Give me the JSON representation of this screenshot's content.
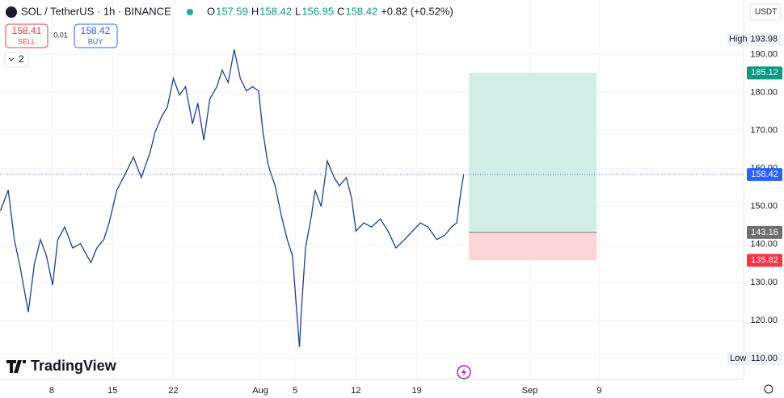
{
  "header": {
    "symbol": "SOL / TetherUS · 1h · BINANCE",
    "ohlc": [
      {
        "key": "O",
        "value": "157.59"
      },
      {
        "key": "H",
        "value": "158.42"
      },
      {
        "key": "L",
        "value": "156.95"
      },
      {
        "key": "C",
        "value": "158.42"
      }
    ],
    "change": "+0.82 (+0.52%)"
  },
  "trade": {
    "sell_price": "158.41",
    "sell_label": "SELL",
    "spread": "0.01",
    "buy_price": "158.42",
    "buy_label": "BUY"
  },
  "indicators_count": "2",
  "currency": "USDT",
  "brand": "TradingView",
  "chart_data": {
    "type": "line",
    "color": "#1e3f8f",
    "grid": true,
    "x": [
      2.1,
      3.0,
      3.7,
      4.4,
      5.3,
      6.0,
      6.7,
      7.4,
      8.1,
      8.7,
      9.5,
      10.4,
      11.3,
      12.5,
      13.2,
      14.0,
      14.6,
      15.5,
      16.5,
      17.4,
      18.3,
      19.3,
      19.9,
      20.7,
      21.3,
      22.0,
      22.7,
      23.4,
      24.2,
      24.8,
      25.5,
      26.2,
      27.0,
      27.6,
      28.3,
      29.0,
      29.7,
      30.4,
      31.1,
      31.8,
      32.3,
      32.9,
      33.7,
      34.4,
      35.1,
      35.7,
      36.5,
      36.7,
      37.2,
      37.9,
      38.3,
      39.0,
      39.7,
      40.5,
      41.1,
      41.9,
      42.5,
      43.0,
      43.9,
      44.8,
      45.8,
      46.7,
      47.6,
      48.6,
      49.5,
      50.4,
      51.3,
      52.3,
      53.2,
      54.0,
      54.6,
      55.1,
      55.4
    ],
    "values": [
      148.9,
      154.3,
      141.3,
      133.7,
      122.2,
      134.8,
      141.3,
      137.0,
      129.3,
      141.3,
      144.6,
      139.1,
      140.2,
      135.2,
      139.1,
      141.3,
      145.7,
      154.3,
      158.7,
      163.0,
      157.6,
      164.1,
      169.6,
      173.9,
      176.1,
      183.7,
      179.3,
      181.5,
      171.7,
      177.2,
      167.4,
      178.3,
      181.5,
      185.9,
      182.6,
      191.3,
      183.7,
      180.4,
      181.5,
      180.4,
      169.6,
      160.9,
      155.4,
      147.8,
      141.3,
      137.0,
      113.0,
      121.7,
      139.1,
      147.8,
      154.3,
      150.0,
      162.0,
      157.6,
      155.4,
      157.6,
      152.2,
      143.5,
      145.7,
      144.6,
      146.7,
      143.5,
      139.1,
      141.3,
      143.5,
      145.7,
      144.6,
      141.3,
      142.4,
      144.6,
      145.7,
      154.3,
      158.42
    ],
    "xlim": [
      2.05,
      87.6
    ],
    "ylim": [
      104.5,
      204.3
    ],
    "xticks": [
      8,
      15,
      22,
      {
        "value": 32,
        "label": "Aug"
      },
      {
        "value": 36,
        "label": "5"
      },
      {
        "value": 43,
        "label": "12"
      },
      {
        "value": 50,
        "label": "19"
      },
      {
        "value": 63,
        "label": "Sep"
      },
      {
        "value": 71,
        "label": "9"
      }
    ],
    "yticks": [
      {
        "value": 110,
        "label": "110.00"
      },
      {
        "value": 120,
        "label": "120.00"
      },
      {
        "value": 130,
        "label": "130.00"
      },
      {
        "value": 140,
        "label": "140.00"
      },
      {
        "value": 150,
        "label": "150.00"
      },
      {
        "value": 160,
        "label": "160.00"
      },
      {
        "value": 170,
        "label": "170.00"
      },
      {
        "value": 180,
        "label": "180.00"
      },
      {
        "value": 190,
        "label": "190.00"
      }
    ],
    "high": {
      "label": "High",
      "value": 193.98
    },
    "low": {
      "label": "Low",
      "value": {
        "value": 110,
        "label": "110.00"
      }
    },
    "last": 158.42,
    "position": {
      "target": 185.12,
      "entry": 143.16,
      "stop": 135.82,
      "x": [
        56.0,
        70.7
      ],
      "profit_color": "#d2ede6",
      "loss_color": "#fbd5d7",
      "target_color": "#089981",
      "entry_color": "#6e6e6e",
      "stop_color": "#f23645"
    }
  }
}
